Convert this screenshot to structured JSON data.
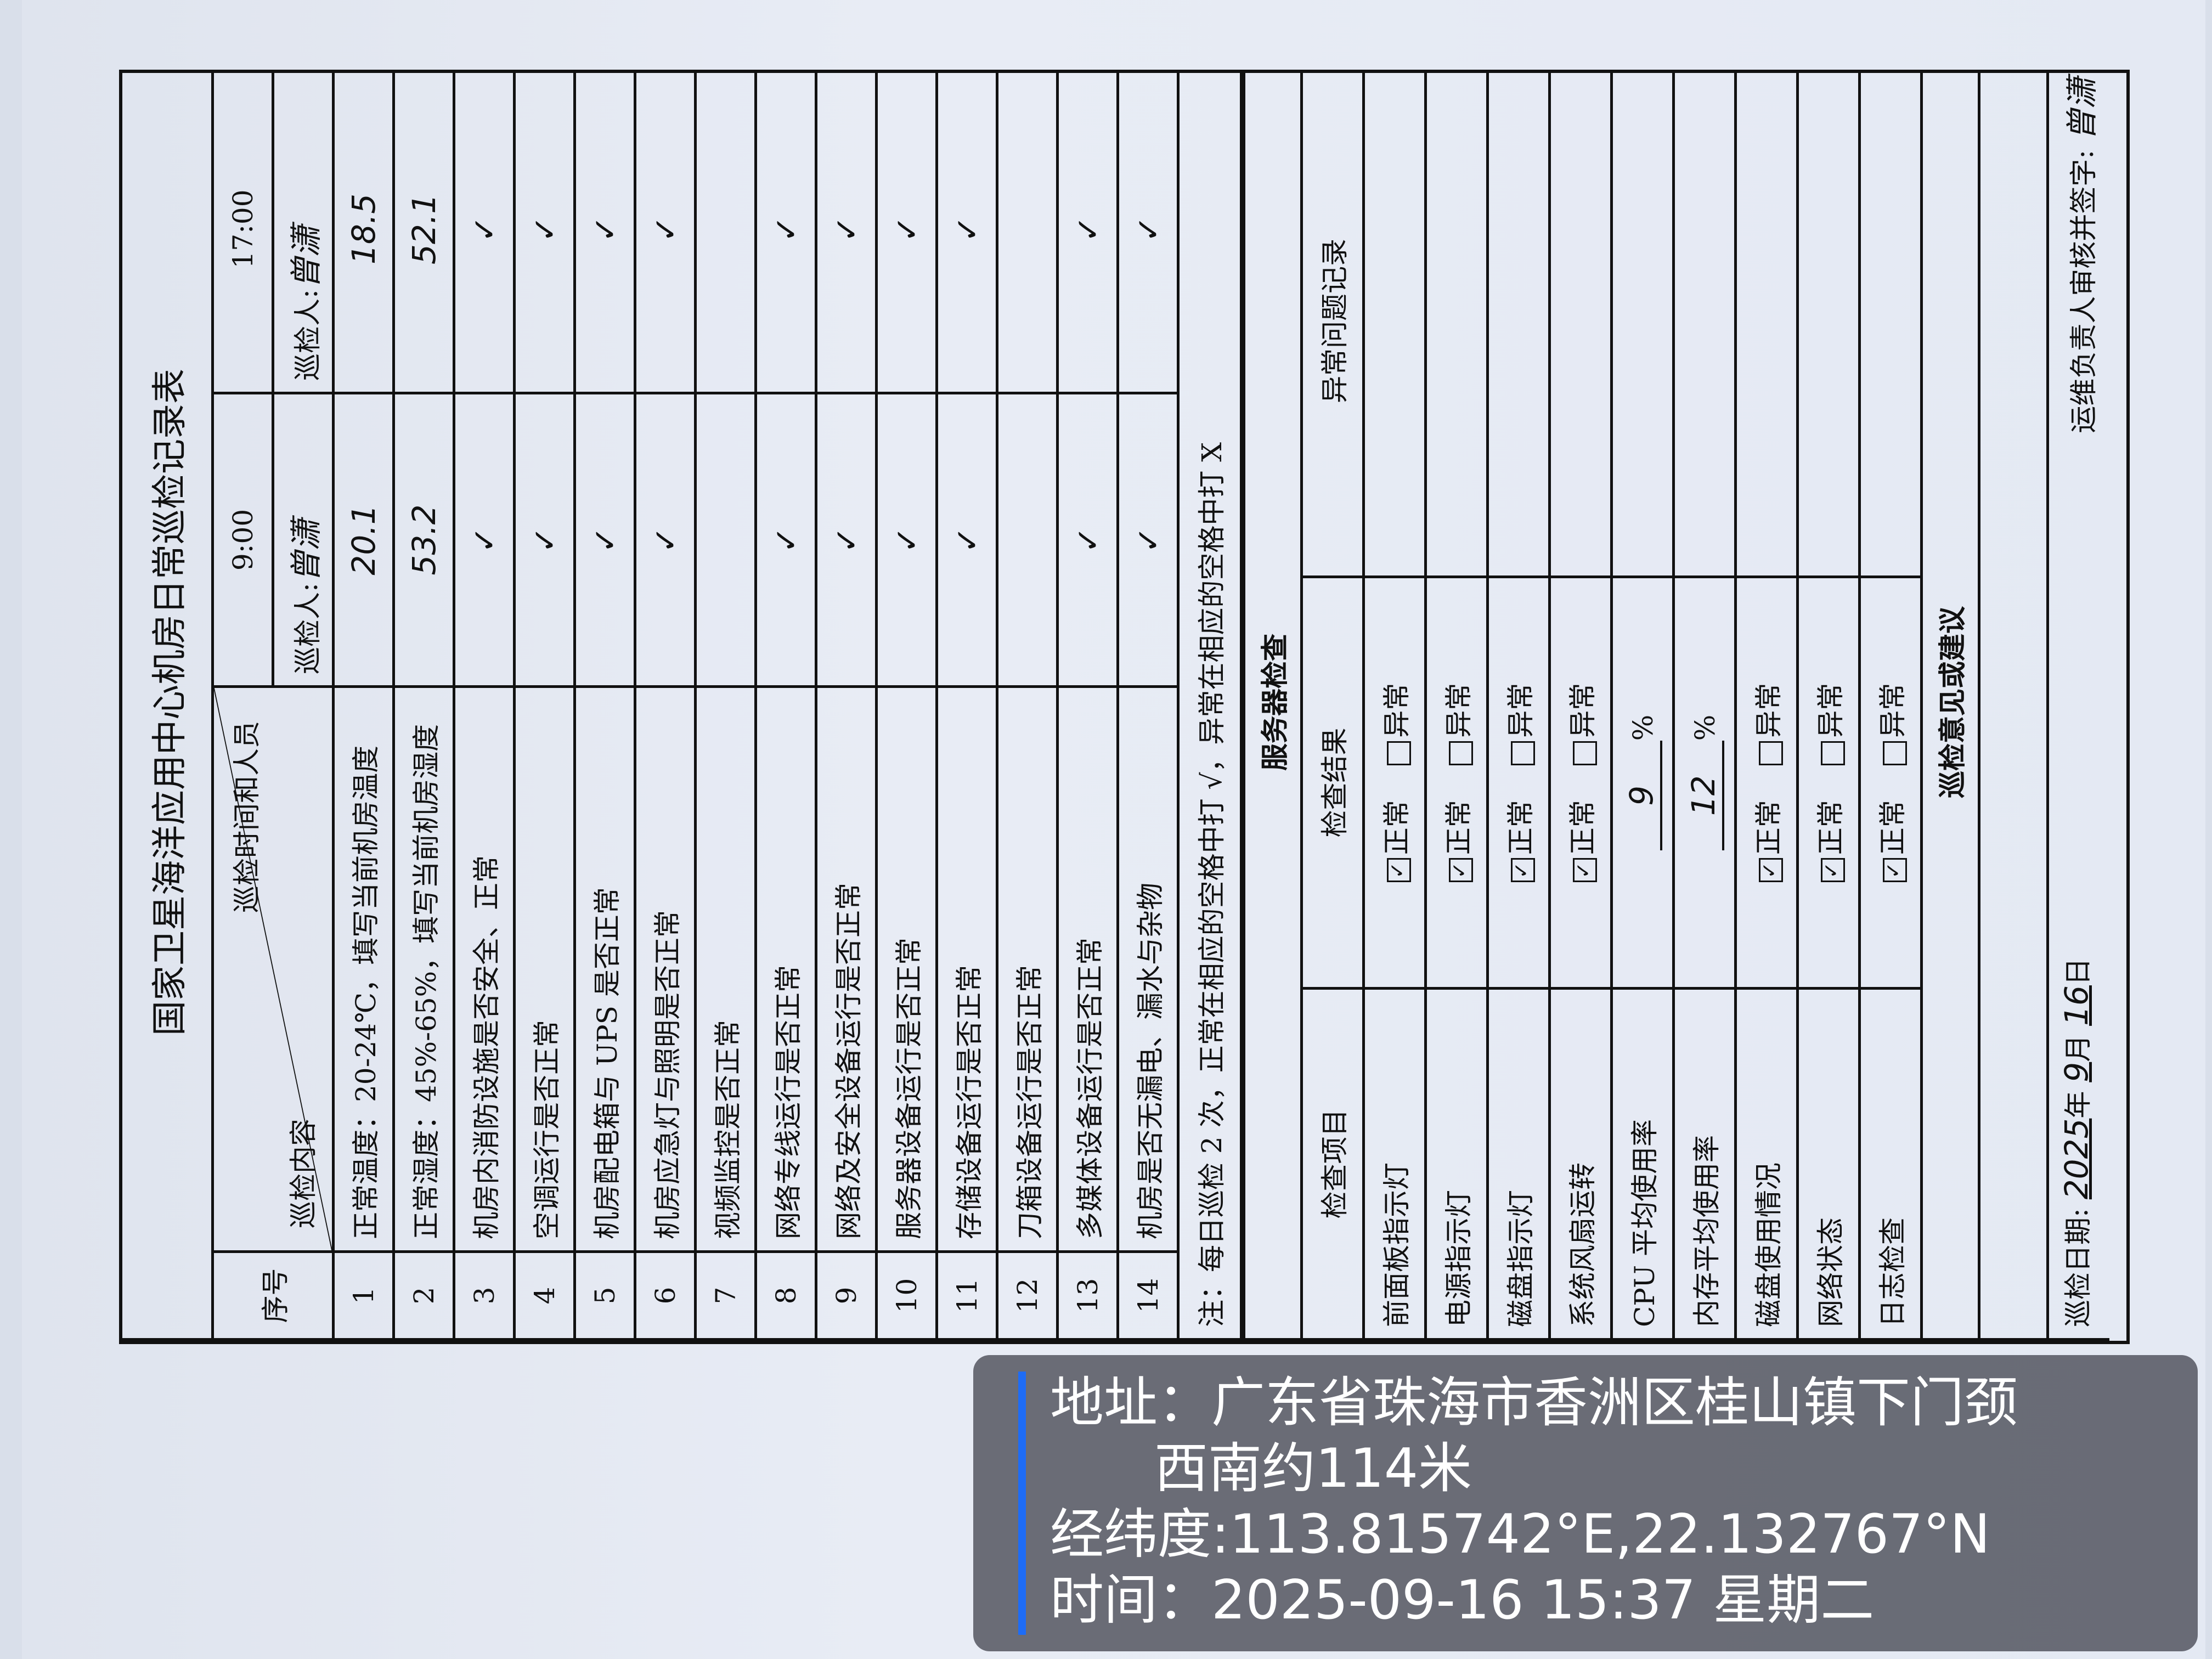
{
  "form": {
    "title": "国家卫星海洋应用中心机房日常巡检记录表",
    "header": {
      "seq": "序号",
      "content": "巡检内容",
      "time_people": "巡检时间和人员",
      "slots": [
        {
          "time": "9:00",
          "inspector_label": "巡检人:",
          "inspector": "曾潇"
        },
        {
          "time": "17:00",
          "inspector_label": "巡检人:",
          "inspector": "曾潇"
        }
      ]
    },
    "rows": [
      {
        "no": "1",
        "item": "正常温度：20-24℃，填写当前机房温度",
        "am": "20.1",
        "pm": "18.5"
      },
      {
        "no": "2",
        "item": "正常湿度：45%-65%，填写当前机房湿度",
        "am": "53.2",
        "pm": "52.1"
      },
      {
        "no": "3",
        "item": "机房内消防设施是否安全、正常",
        "am": "✓",
        "pm": "✓"
      },
      {
        "no": "4",
        "item": "空调运行是否正常",
        "am": "✓",
        "pm": "✓"
      },
      {
        "no": "5",
        "item": "机房配电箱与 UPS 是否正常",
        "am": "✓",
        "pm": "✓"
      },
      {
        "no": "6",
        "item": "机房应急灯与照明是否正常",
        "am": "✓",
        "pm": "✓"
      },
      {
        "no": "7",
        "item": "视频监控是否正常",
        "am": "",
        "pm": ""
      },
      {
        "no": "8",
        "item": "网络专线运行是否正常",
        "am": "✓",
        "pm": "✓"
      },
      {
        "no": "9",
        "item": "网络及安全设备运行是否正常",
        "am": "✓",
        "pm": "✓"
      },
      {
        "no": "10",
        "item": "服务器设备运行是否正常",
        "am": "✓",
        "pm": "✓"
      },
      {
        "no": "11",
        "item": "存储设备运行是否正常",
        "am": "✓",
        "pm": "✓"
      },
      {
        "no": "12",
        "item": "刀箱设备运行是否正常",
        "am": "",
        "pm": ""
      },
      {
        "no": "13",
        "item": "多媒体设备运行是否正常",
        "am": "✓",
        "pm": "✓"
      },
      {
        "no": "14",
        "item": "机房是否无漏电、漏水与杂物",
        "am": "✓",
        "pm": "✓"
      }
    ],
    "note": "注：每日巡检 2 次，正常在相应的空格中打 √，异常在相应的空格中打 X",
    "server_section": "服务器检查",
    "server_header": {
      "item": "检查项目",
      "result": "检查结果",
      "issues": "异常问题记录"
    },
    "normal_label": "正常",
    "abnormal_label": "异常",
    "server_rows": [
      {
        "item": "前面板指示灯",
        "type": "check",
        "normal": true
      },
      {
        "item": "电源指示灯",
        "type": "check",
        "normal": true
      },
      {
        "item": "磁盘指示灯",
        "type": "check",
        "normal": true
      },
      {
        "item": "系统风扇运转",
        "type": "check",
        "normal": true
      },
      {
        "item": "CPU 平均使用率",
        "type": "percent",
        "value": "9",
        "unit": "%"
      },
      {
        "item": "内存平均使用率",
        "type": "percent",
        "value": "12",
        "unit": "%"
      },
      {
        "item": "磁盘使用情况",
        "type": "check",
        "normal": true
      },
      {
        "item": "网络状态",
        "type": "check",
        "normal": true
      },
      {
        "item": "日志检查",
        "type": "check",
        "normal": true
      }
    ],
    "opinion": "巡检意见或建议",
    "footer": {
      "date_label": "巡检日期:",
      "year": "2025",
      "year_label": "年",
      "month": "9",
      "month_label": "月",
      "day": "16",
      "day_label": "日",
      "sign_label": "运维负责人审核并签字:",
      "signature": "曾潇"
    }
  },
  "watermark": {
    "address": "地址：广东省珠海市香洲区桂山镇下门颈",
    "address2": "西南约114米",
    "coords": "经纬度:113.815742°E,22.132767°N",
    "time": "时间：2025-09-16 15:37 星期二",
    "accent": "#1e6cf5"
  }
}
